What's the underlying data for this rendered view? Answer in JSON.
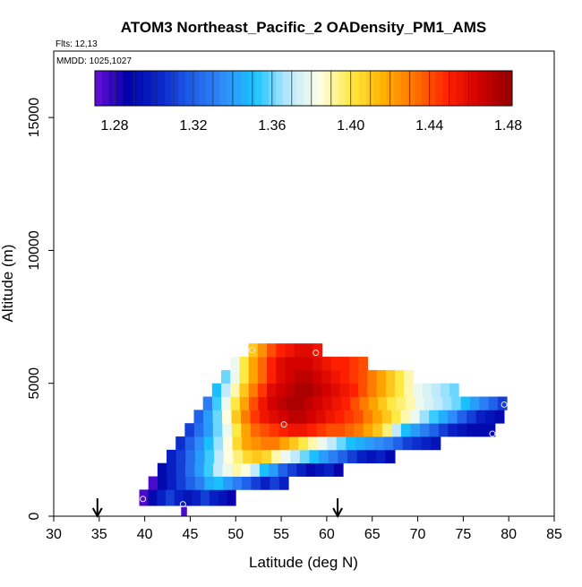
{
  "chart_data": {
    "type": "heatmap",
    "title": "ATOM3 Northeast_Pacific_2 OADensity_PM1_AMS",
    "subtitle_flights": "Flts: 12,13",
    "subtitle_dates": "MMDD: 1025,1027",
    "xlabel": "Latitude (deg N)",
    "ylabel": "Altitude (m)",
    "xlim": [
      30,
      85
    ],
    "ylim": [
      0,
      17500
    ],
    "x_ticks": [
      "30",
      "35",
      "40",
      "45",
      "50",
      "55",
      "60",
      "65",
      "70",
      "75",
      "80",
      "85"
    ],
    "y_ticks": [
      "0",
      "5000",
      "10000",
      "15000"
    ],
    "colorbar": {
      "min": 1.27,
      "max": 1.482,
      "tick_values": [
        1.28,
        1.32,
        1.36,
        1.4,
        1.44,
        1.48
      ],
      "tick_labels": [
        "1.28",
        "1.32",
        "1.36",
        "1.40",
        "1.44",
        "1.48"
      ],
      "colors": [
        "#6a0fd8",
        "#0000a8",
        "#0a26c8",
        "#1f5ee8",
        "#2f8cf8",
        "#18c4ff",
        "#b8e8ff",
        "#ffffe8",
        "#ffe840",
        "#ffb000",
        "#ff7000",
        "#ff2000",
        "#d00000",
        "#900000"
      ]
    },
    "markers": [
      {
        "lat": 34.8,
        "label": "arrow"
      },
      {
        "lat": 61.2,
        "label": "arrow"
      }
    ],
    "circles": [
      {
        "lat": 39.8,
        "alt": 650
      },
      {
        "lat": 44.2,
        "alt": 450
      },
      {
        "lat": 51.8,
        "alt": 6250
      },
      {
        "lat": 58.8,
        "alt": 6150
      },
      {
        "lat": 55.3,
        "alt": 3450
      },
      {
        "lat": 78.2,
        "alt": 3100
      },
      {
        "lat": 79.5,
        "alt": 4200
      }
    ],
    "rows": [
      {
        "alt": [
          0,
          350
        ],
        "lat": [
          44.0,
          44.6
        ],
        "values": [
          1.275
        ]
      },
      {
        "alt": [
          400,
          1000
        ],
        "lat": [
          39.4,
          50.0
        ],
        "values": [
          1.275,
          1.29,
          1.3,
          1.31,
          1.3,
          1.295,
          1.3,
          1.31,
          1.3,
          1.295,
          1.285
        ]
      },
      {
        "alt": [
          1000,
          1500
        ],
        "lat": [
          40.4,
          55.8
        ],
        "values": [
          1.275,
          1.29,
          1.3,
          1.31,
          1.32,
          1.33,
          1.345,
          1.35,
          1.34,
          1.33,
          1.32,
          1.31,
          1.3,
          1.31,
          1.3
        ]
      },
      {
        "alt": [
          1500,
          2000
        ],
        "lat": [
          41.4,
          61.8
        ],
        "values": [
          1.29,
          1.3,
          1.31,
          1.325,
          1.34,
          1.355,
          1.37,
          1.38,
          1.39,
          1.385,
          1.37,
          1.35,
          1.34,
          1.32,
          1.31,
          1.3,
          1.29,
          1.295,
          1.3,
          1.285
        ]
      },
      {
        "alt": [
          2000,
          2500
        ],
        "lat": [
          42.4,
          67.5
        ],
        "values": [
          1.3,
          1.31,
          1.325,
          1.34,
          1.355,
          1.37,
          1.385,
          1.395,
          1.405,
          1.41,
          1.405,
          1.39,
          1.38,
          1.37,
          1.36,
          1.35,
          1.34,
          1.33,
          1.32,
          1.31,
          1.3,
          1.295,
          1.3,
          1.29
        ]
      },
      {
        "alt": [
          2500,
          3000
        ],
        "lat": [
          43.4,
          72.5
        ],
        "values": [
          1.305,
          1.32,
          1.335,
          1.35,
          1.365,
          1.385,
          1.405,
          1.42,
          1.425,
          1.43,
          1.43,
          1.42,
          1.41,
          1.4,
          1.39,
          1.38,
          1.37,
          1.36,
          1.35,
          1.345,
          1.34,
          1.335,
          1.33,
          1.32,
          1.31,
          1.305,
          1.3,
          1.295
        ]
      },
      {
        "alt": [
          3000,
          3500
        ],
        "lat": [
          44.4,
          78.5
        ],
        "values": [
          1.31,
          1.325,
          1.34,
          1.36,
          1.38,
          1.4,
          1.42,
          1.435,
          1.44,
          1.445,
          1.45,
          1.455,
          1.455,
          1.45,
          1.445,
          1.44,
          1.44,
          1.435,
          1.43,
          1.42,
          1.41,
          1.395,
          1.37,
          1.35,
          1.34,
          1.33,
          1.32,
          1.31,
          1.3,
          1.295,
          1.29,
          1.29,
          1.29
        ]
      },
      {
        "alt": [
          3500,
          4000
        ],
        "lat": [
          45.4,
          79.5
        ],
        "values": [
          1.32,
          1.34,
          1.36,
          1.385,
          1.41,
          1.43,
          1.445,
          1.455,
          1.46,
          1.465,
          1.47,
          1.47,
          1.465,
          1.46,
          1.455,
          1.45,
          1.445,
          1.44,
          1.43,
          1.42,
          1.41,
          1.4,
          1.39,
          1.38,
          1.365,
          1.355,
          1.345,
          1.335,
          1.32,
          1.31,
          1.3,
          1.295,
          1.29
        ]
      },
      {
        "alt": [
          4000,
          4500
        ],
        "lat": [
          46.4,
          79.8
        ],
        "values": [
          1.33,
          1.355,
          1.38,
          1.4,
          1.42,
          1.44,
          1.455,
          1.465,
          1.47,
          1.475,
          1.475,
          1.47,
          1.465,
          1.46,
          1.455,
          1.45,
          1.44,
          1.43,
          1.42,
          1.41,
          1.4,
          1.395,
          1.39,
          1.38,
          1.375,
          1.37,
          1.365,
          1.36,
          1.35,
          1.34,
          1.33,
          1.32,
          1.31
        ]
      },
      {
        "alt": [
          4500,
          5000
        ],
        "lat": [
          47.4,
          74.5
        ],
        "values": [
          1.35,
          1.37,
          1.39,
          1.41,
          1.43,
          1.445,
          1.46,
          1.465,
          1.47,
          1.475,
          1.475,
          1.47,
          1.465,
          1.46,
          1.455,
          1.45,
          1.44,
          1.43,
          1.42,
          1.41,
          1.4,
          1.39,
          1.38,
          1.375,
          1.37,
          1.365,
          1.36
        ]
      },
      {
        "alt": [
          5000,
          5500
        ],
        "lat": [
          48.4,
          69.5
        ],
        "values": [
          1.36,
          1.38,
          1.4,
          1.42,
          1.435,
          1.45,
          1.46,
          1.465,
          1.47,
          1.47,
          1.465,
          1.46,
          1.455,
          1.45,
          1.445,
          1.44,
          1.43,
          1.42,
          1.41,
          1.4,
          1.39
        ]
      },
      {
        "alt": [
          5500,
          6000
        ],
        "lat": [
          49.4,
          64.5
        ],
        "values": [
          1.38,
          1.4,
          1.42,
          1.435,
          1.45,
          1.46,
          1.465,
          1.465,
          1.465,
          1.46,
          1.455,
          1.45,
          1.45,
          1.445,
          1.44
        ]
      },
      {
        "alt": [
          6000,
          6500
        ],
        "lat": [
          51.4,
          59.5
        ],
        "values": [
          1.41,
          1.425,
          1.44,
          1.45,
          1.455,
          1.46,
          1.46,
          1.455
        ]
      }
    ]
  }
}
